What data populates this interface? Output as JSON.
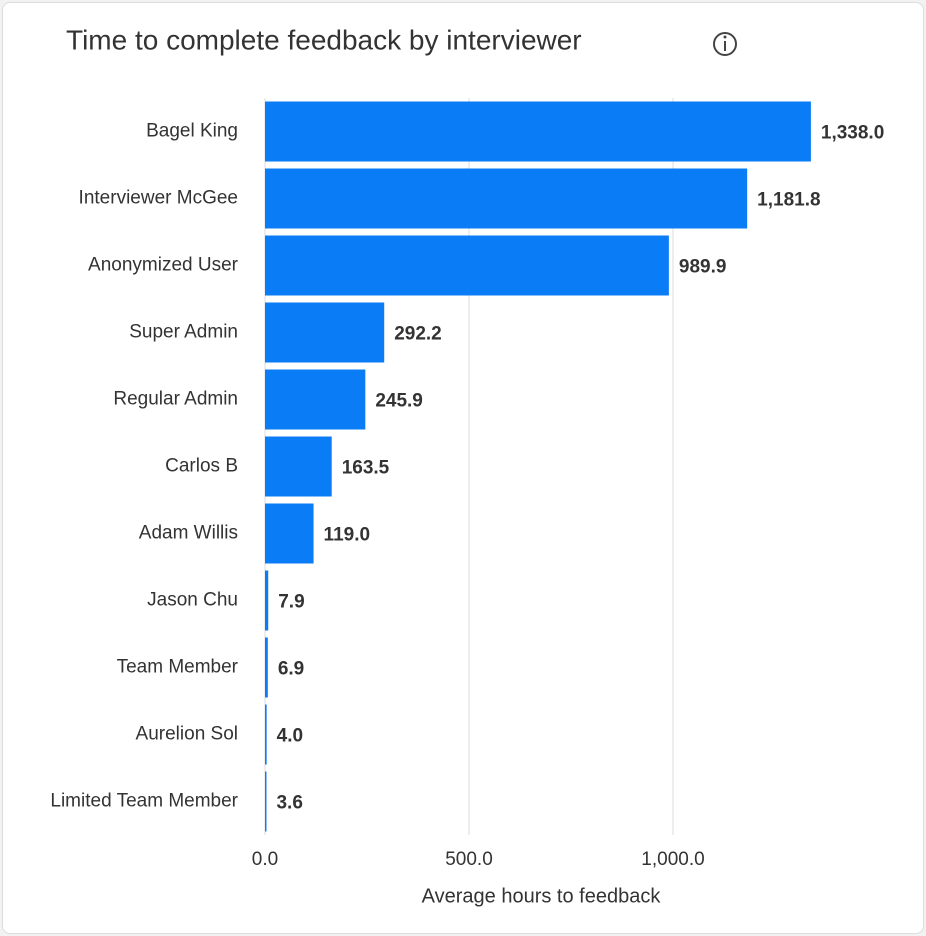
{
  "chart_data": {
    "type": "bar",
    "orientation": "horizontal",
    "title": "Time to complete feedback by interviewer",
    "categories": [
      "Bagel King",
      "Interviewer McGee",
      "Anonymized User",
      "Super Admin",
      "Regular Admin",
      "Carlos B",
      "Adam Willis",
      "Jason Chu",
      "Team Member",
      "Aurelion Sol",
      "Limited Team Member"
    ],
    "values": [
      1338.0,
      1181.8,
      989.9,
      292.2,
      245.9,
      163.5,
      119.0,
      7.9,
      6.9,
      4.0,
      3.6
    ],
    "value_labels": [
      "1,338.0",
      "1,181.8",
      "989.9",
      "292.2",
      "245.9",
      "163.5",
      "119.0",
      "7.9",
      "6.9",
      "4.0",
      "3.6"
    ],
    "color": "#0a7cf5",
    "xlabel": "Average hours to feedback",
    "xlim": [
      0,
      1500
    ],
    "xticks": [
      {
        "value": 0,
        "label": "0.0"
      },
      {
        "value": 500,
        "label": "500.0"
      },
      {
        "value": 1000,
        "label": "1,000.0"
      }
    ],
    "grid": true
  }
}
